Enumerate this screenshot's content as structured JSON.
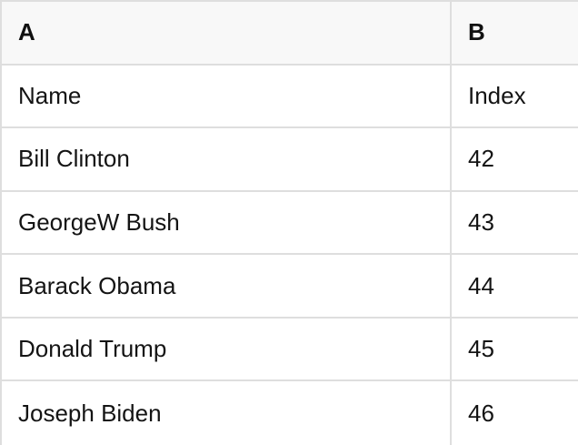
{
  "table": {
    "columns": [
      {
        "key": "A",
        "label": "A"
      },
      {
        "key": "B",
        "label": "B"
      }
    ],
    "rows": [
      {
        "cells": [
          "Name",
          "Index"
        ]
      },
      {
        "cells": [
          "Bill Clinton",
          "42"
        ]
      },
      {
        "cells": [
          "GeorgeW Bush",
          "43"
        ]
      },
      {
        "cells": [
          "Barack Obama",
          "44"
        ]
      },
      {
        "cells": [
          "Donald Trump",
          "45"
        ]
      },
      {
        "cells": [
          "Joseph Biden",
          "46"
        ]
      }
    ]
  },
  "colors": {
    "header_bg": "#f8f8f8",
    "row_bg": "#ffffff",
    "border": "#dedede",
    "text": "#141414"
  }
}
